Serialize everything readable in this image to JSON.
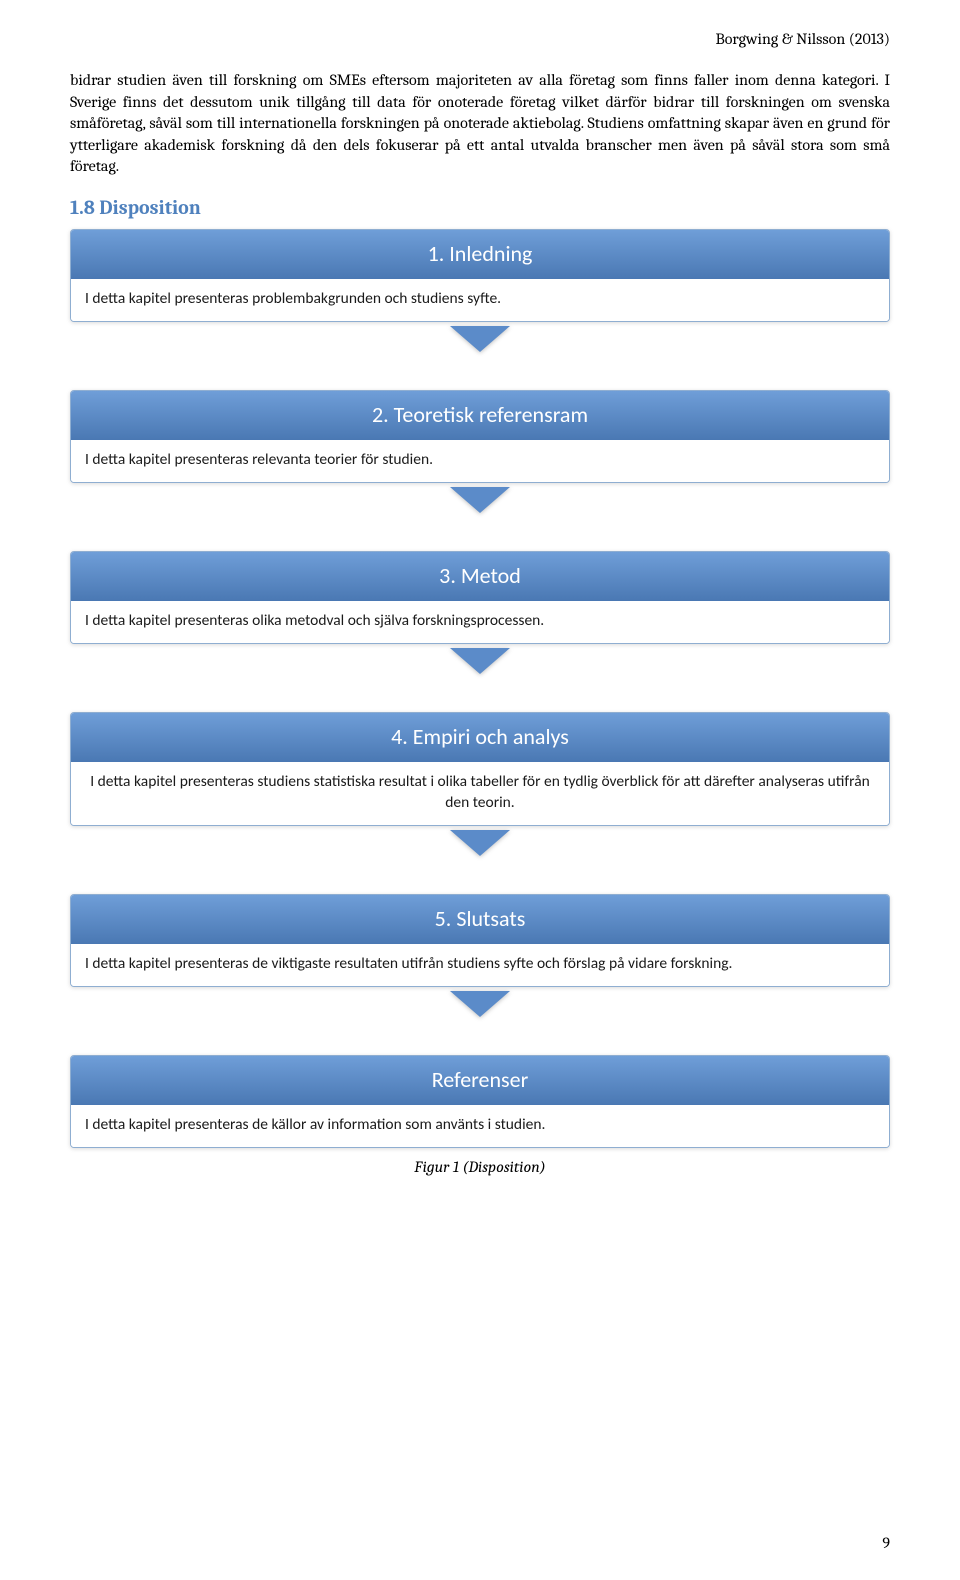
{
  "header": {
    "citation": "Borgwing & Nilsson (2013)"
  },
  "paragraph": "bidrar studien även till forskning om SMEs eftersom majoriteten av alla företag som finns faller inom denna kategori. I Sverige finns det dessutom unik tillgång till data för onoterade företag vilket därför bidrar till forskningen om svenska småföretag, såväl som till internationella forskningen på onoterade aktiebolag. Studiens omfattning skapar även en grund för ytterligare akademisk forskning då den dels fokuserar på ett antal utvalda branscher men även på såväl stora som små företag.",
  "section": {
    "heading": "1.8 Disposition",
    "heading_color": "#4f81bd"
  },
  "flow": {
    "gradient_top": "#6f9ed8",
    "gradient_bottom": "#4a78b3",
    "arrow_color": "#5b8bc9",
    "border_color": "#8faed1",
    "steps": [
      {
        "title": "1. Inledning",
        "desc": "I detta kapitel presenteras problembakgrunden och studiens syfte.",
        "align": "left"
      },
      {
        "title": "2. Teoretisk referensram",
        "desc": "I detta kapitel presenteras relevanta teorier för studien.",
        "align": "left"
      },
      {
        "title": "3. Metod",
        "desc": "I detta kapitel presenteras olika metodval och själva forskningsprocessen.",
        "align": "left"
      },
      {
        "title": "4. Empiri och analys",
        "desc": "I detta kapitel presenteras studiens statistiska resultat i olika tabeller för en tydlig överblick för att därefter analyseras utifrån den teorin.",
        "align": "center"
      },
      {
        "title": "5. Slutsats",
        "desc": "I detta kapitel presenteras de viktigaste resultaten utifrån studiens syfte och förslag på vidare forskning.",
        "align": "left"
      },
      {
        "title": "Referenser",
        "desc": "I detta kapitel presenteras de källor av information som använts i studien.",
        "align": "left"
      }
    ]
  },
  "caption": "Figur 1 (Disposition)",
  "page_number": "9"
}
